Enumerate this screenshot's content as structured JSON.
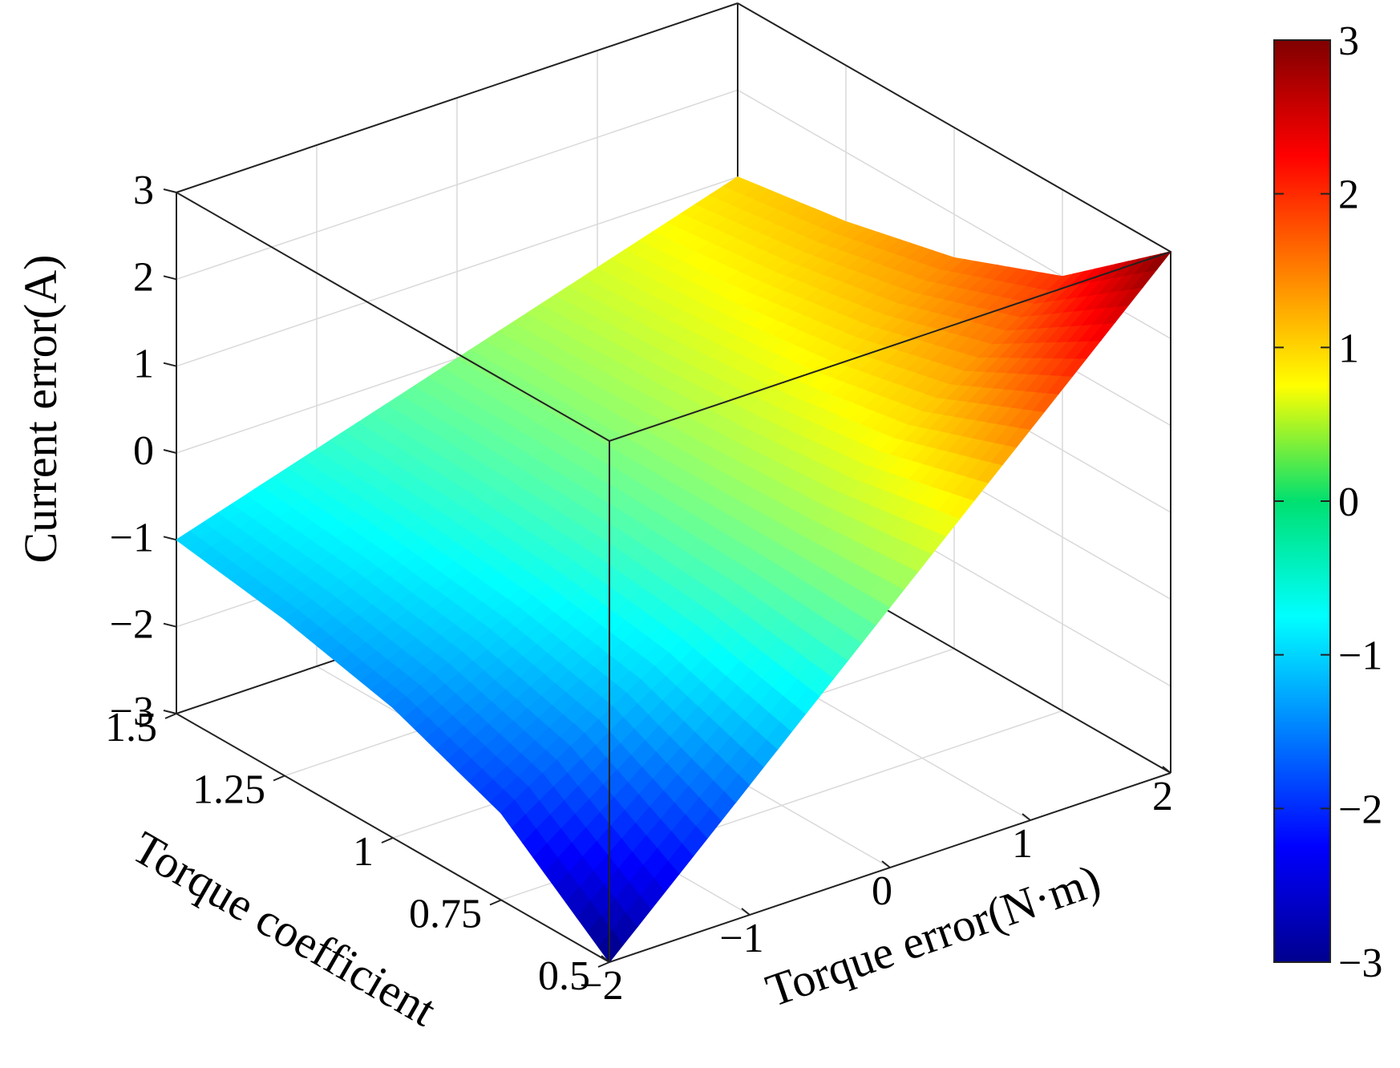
{
  "chart_data": {
    "type": "surface",
    "title": "",
    "xlabel": "Torque error(N·m)",
    "ylabel": "Torque coefficient",
    "zlabel": "Current error(A)",
    "x_ticks": [
      "−2",
      "−1",
      "0",
      "1",
      "2"
    ],
    "y_ticks": [
      "0.5",
      "0.75",
      "1",
      "1.25",
      "1.5"
    ],
    "z_ticks": [
      "−3",
      "−2",
      "−1",
      "0",
      "1",
      "2",
      "3"
    ],
    "x_range": [
      -2,
      2
    ],
    "y_range": [
      0.5,
      1.5
    ],
    "z_range": [
      -3,
      3
    ],
    "x": [
      -2,
      -1,
      0,
      1,
      2
    ],
    "y": [
      0.5,
      0.75,
      1.0,
      1.25,
      1.5
    ],
    "z": [
      [
        -3.0,
        -1.5,
        0.0,
        1.5,
        3.0
      ],
      [
        -2.0,
        -1.0,
        0.0,
        1.0,
        2.0
      ],
      [
        -1.5,
        -0.75,
        0.0,
        0.75,
        1.5
      ],
      [
        -1.2,
        -0.6,
        0.0,
        0.6,
        1.2
      ],
      [
        -1.0,
        -0.5,
        0.0,
        0.5,
        1.0
      ]
    ],
    "colormap": "jet",
    "grid": true,
    "colorbar": {
      "range": [
        -3,
        3
      ],
      "ticks": [
        "−3",
        "−2",
        "−1",
        "0",
        "1",
        "2",
        "3"
      ],
      "placement": "right"
    }
  }
}
